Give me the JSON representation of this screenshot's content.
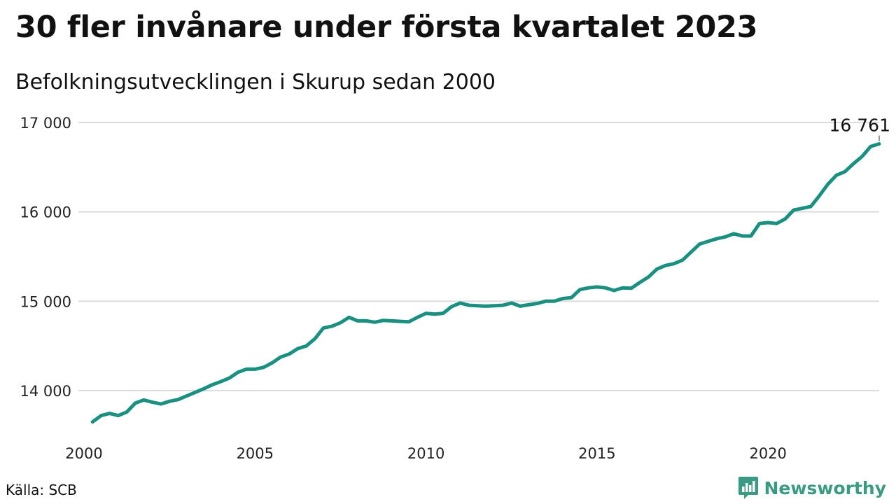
{
  "title": "30 fler invånare under första kvartalet 2023",
  "subtitle": "Befolkningsutvecklingen i Skurup sedan 2000",
  "source": "Källa: SCB",
  "brand": {
    "name": "Newsworthy",
    "color": "#3a9b85"
  },
  "chart_data": {
    "type": "line",
    "title": "30 fler invånare under första kvartalet 2023",
    "subtitle": "Befolkningsutvecklingen i Skurup sedan 2000",
    "xlabel": "",
    "ylabel": "",
    "xlim": [
      2000,
      2023.25
    ],
    "ylim": [
      13500,
      17100
    ],
    "x_ticks": [
      2000,
      2005,
      2010,
      2015,
      2020
    ],
    "x_tick_labels": [
      "2000",
      "2005",
      "2010",
      "2015",
      "2020"
    ],
    "y_ticks": [
      14000,
      15000,
      16000,
      17000
    ],
    "y_tick_labels": [
      "14 000",
      "15 000",
      "16 000",
      "17 000"
    ],
    "grid": true,
    "line_color": "#1a9080",
    "annotation": {
      "x": 2023.25,
      "y": 16761,
      "label": "16 761"
    },
    "series": [
      {
        "x": [
          2000.25,
          2000.5,
          2000.75,
          2001.0,
          2001.25,
          2001.5,
          2001.75,
          2002.0,
          2002.25,
          2002.5,
          2002.75,
          2003.0,
          2003.25,
          2003.5,
          2003.75,
          2004.0,
          2004.25,
          2004.5,
          2004.75,
          2005.0,
          2005.25,
          2005.5,
          2005.75,
          2006.0,
          2006.25,
          2006.5,
          2006.75,
          2007.0,
          2007.25,
          2007.5,
          2007.75,
          2008.0,
          2008.25,
          2008.5,
          2008.75,
          2009.0,
          2009.25,
          2009.5,
          2009.75,
          2010.0,
          2010.25,
          2010.5,
          2010.75,
          2011.0,
          2011.25,
          2011.5,
          2011.75,
          2012.0,
          2012.25,
          2012.5,
          2012.75,
          2013.0,
          2013.25,
          2013.5,
          2013.75,
          2014.0,
          2014.25,
          2014.5,
          2014.75,
          2015.0,
          2015.25,
          2015.5,
          2015.75,
          2016.0,
          2016.25,
          2016.5,
          2016.75,
          2017.0,
          2017.25,
          2017.5,
          2017.75,
          2018.0,
          2018.25,
          2018.5,
          2018.75,
          2019.0,
          2019.25,
          2019.5,
          2019.75,
          2020.0,
          2020.25,
          2020.5,
          2020.75,
          2021.0,
          2021.25,
          2021.5,
          2021.75,
          2022.0,
          2022.25,
          2022.5,
          2022.75,
          2023.0,
          2023.25
        ],
        "values": [
          13650,
          13720,
          13745,
          13720,
          13760,
          13860,
          13895,
          13870,
          13850,
          13880,
          13900,
          13940,
          13980,
          14020,
          14065,
          14100,
          14140,
          14205,
          14240,
          14240,
          14260,
          14310,
          14375,
          14410,
          14470,
          14500,
          14580,
          14700,
          14720,
          14760,
          14820,
          14780,
          14780,
          14765,
          14785,
          14780,
          14775,
          14770,
          14820,
          14865,
          14855,
          14865,
          14940,
          14980,
          14955,
          14950,
          14945,
          14950,
          14955,
          14980,
          14945,
          14960,
          14975,
          15000,
          15000,
          15030,
          15040,
          15130,
          15150,
          15160,
          15150,
          15120,
          15150,
          15145,
          15210,
          15270,
          15360,
          15400,
          15420,
          15460,
          15550,
          15640,
          15670,
          15700,
          15720,
          15755,
          15730,
          15730,
          15870,
          15880,
          15870,
          15920,
          16020,
          16040,
          16060,
          16180,
          16310,
          16410,
          16450,
          16540,
          16620,
          16731,
          16761
        ]
      }
    ]
  }
}
